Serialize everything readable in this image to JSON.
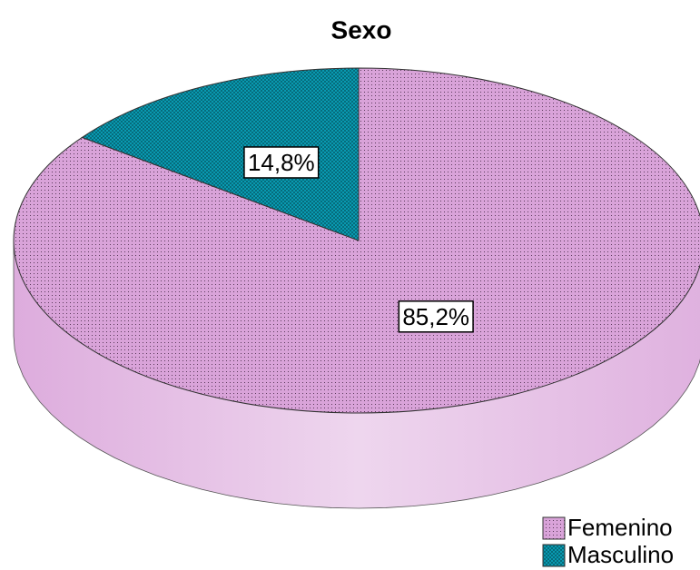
{
  "chart_data": {
    "type": "pie",
    "title": "Sexo",
    "categories": [
      "Femenino",
      "Masculino"
    ],
    "values": [
      85.2,
      14.8
    ],
    "value_labels": [
      "85,2%",
      "14,8%"
    ],
    "colors": [
      "#d9a3d9",
      "#0aa6bf"
    ],
    "legend": "bottom-right"
  }
}
